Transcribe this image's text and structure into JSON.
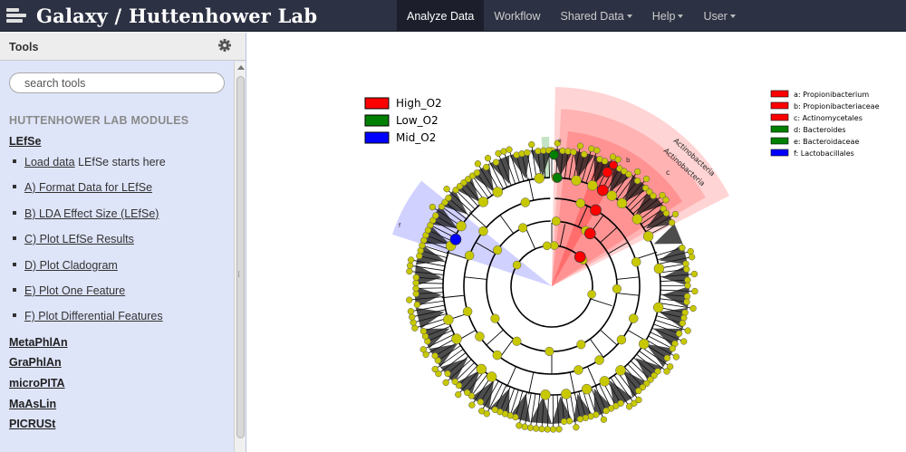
{
  "masthead": {
    "brand_title": "Galaxy / Huttenhower Lab",
    "tabs": [
      {
        "label": "Analyze Data",
        "active": true,
        "dropdown": false
      },
      {
        "label": "Workflow",
        "active": false,
        "dropdown": false
      },
      {
        "label": "Shared Data",
        "active": false,
        "dropdown": true
      },
      {
        "label": "Help",
        "active": false,
        "dropdown": true
      },
      {
        "label": "User",
        "active": false,
        "dropdown": true
      }
    ]
  },
  "tool_panel": {
    "title": "Tools",
    "options_icon": "gear-icon",
    "search_placeholder": "search tools",
    "section_title": "HUTTENHOWER LAB MODULES",
    "groups": [
      {
        "label": "LEfSe",
        "tools": [
          {
            "link": "Load data",
            "suffix": " LEfSe starts here"
          },
          {
            "link": "A) Format Data for LEfSe",
            "suffix": ""
          },
          {
            "link": "B) LDA Effect Size (LEfSe)",
            "suffix": ""
          },
          {
            "link": "C) Plot LEfSe Results",
            "suffix": ""
          },
          {
            "link": "D) Plot Cladogram",
            "suffix": ""
          },
          {
            "link": "E) Plot One Feature",
            "suffix": ""
          },
          {
            "link": "F) Plot Differential Features",
            "suffix": ""
          }
        ]
      },
      {
        "label": "MetaPhlAn",
        "tools": []
      },
      {
        "label": "GraPhlAn",
        "tools": []
      },
      {
        "label": "microPITA",
        "tools": []
      },
      {
        "label": "MaAsLin",
        "tools": []
      },
      {
        "label": "PICRUSt",
        "tools": []
      }
    ]
  },
  "cladogram": {
    "class_legend": [
      {
        "label": "High_O2",
        "color": "#ff0000"
      },
      {
        "label": "Low_O2",
        "color": "#008000"
      },
      {
        "label": "Mid_O2",
        "color": "#0000ff"
      }
    ],
    "biomarker_legend": [
      {
        "label": "a: Propionibacterium",
        "color": "#ff0000"
      },
      {
        "label": "b: Propionibacteriaceae",
        "color": "#ff0000"
      },
      {
        "label": "c: Actinomycetales",
        "color": "#ff0000"
      },
      {
        "label": "d: Bacteroides",
        "color": "#008000"
      },
      {
        "label": "e: Bacteroidaceae",
        "color": "#008000"
      },
      {
        "label": "f: Lactobacillales",
        "color": "#0000ff"
      }
    ],
    "clade_labels": {
      "outer_arc": "Actinobacteria",
      "inner_arc": "Actinobacteria",
      "c": "c",
      "b": "b",
      "f": "f",
      "e": "e"
    },
    "node_color": "#c8c800",
    "highlight_high": "#ff6666",
    "highlight_mid": "#8888ff"
  }
}
